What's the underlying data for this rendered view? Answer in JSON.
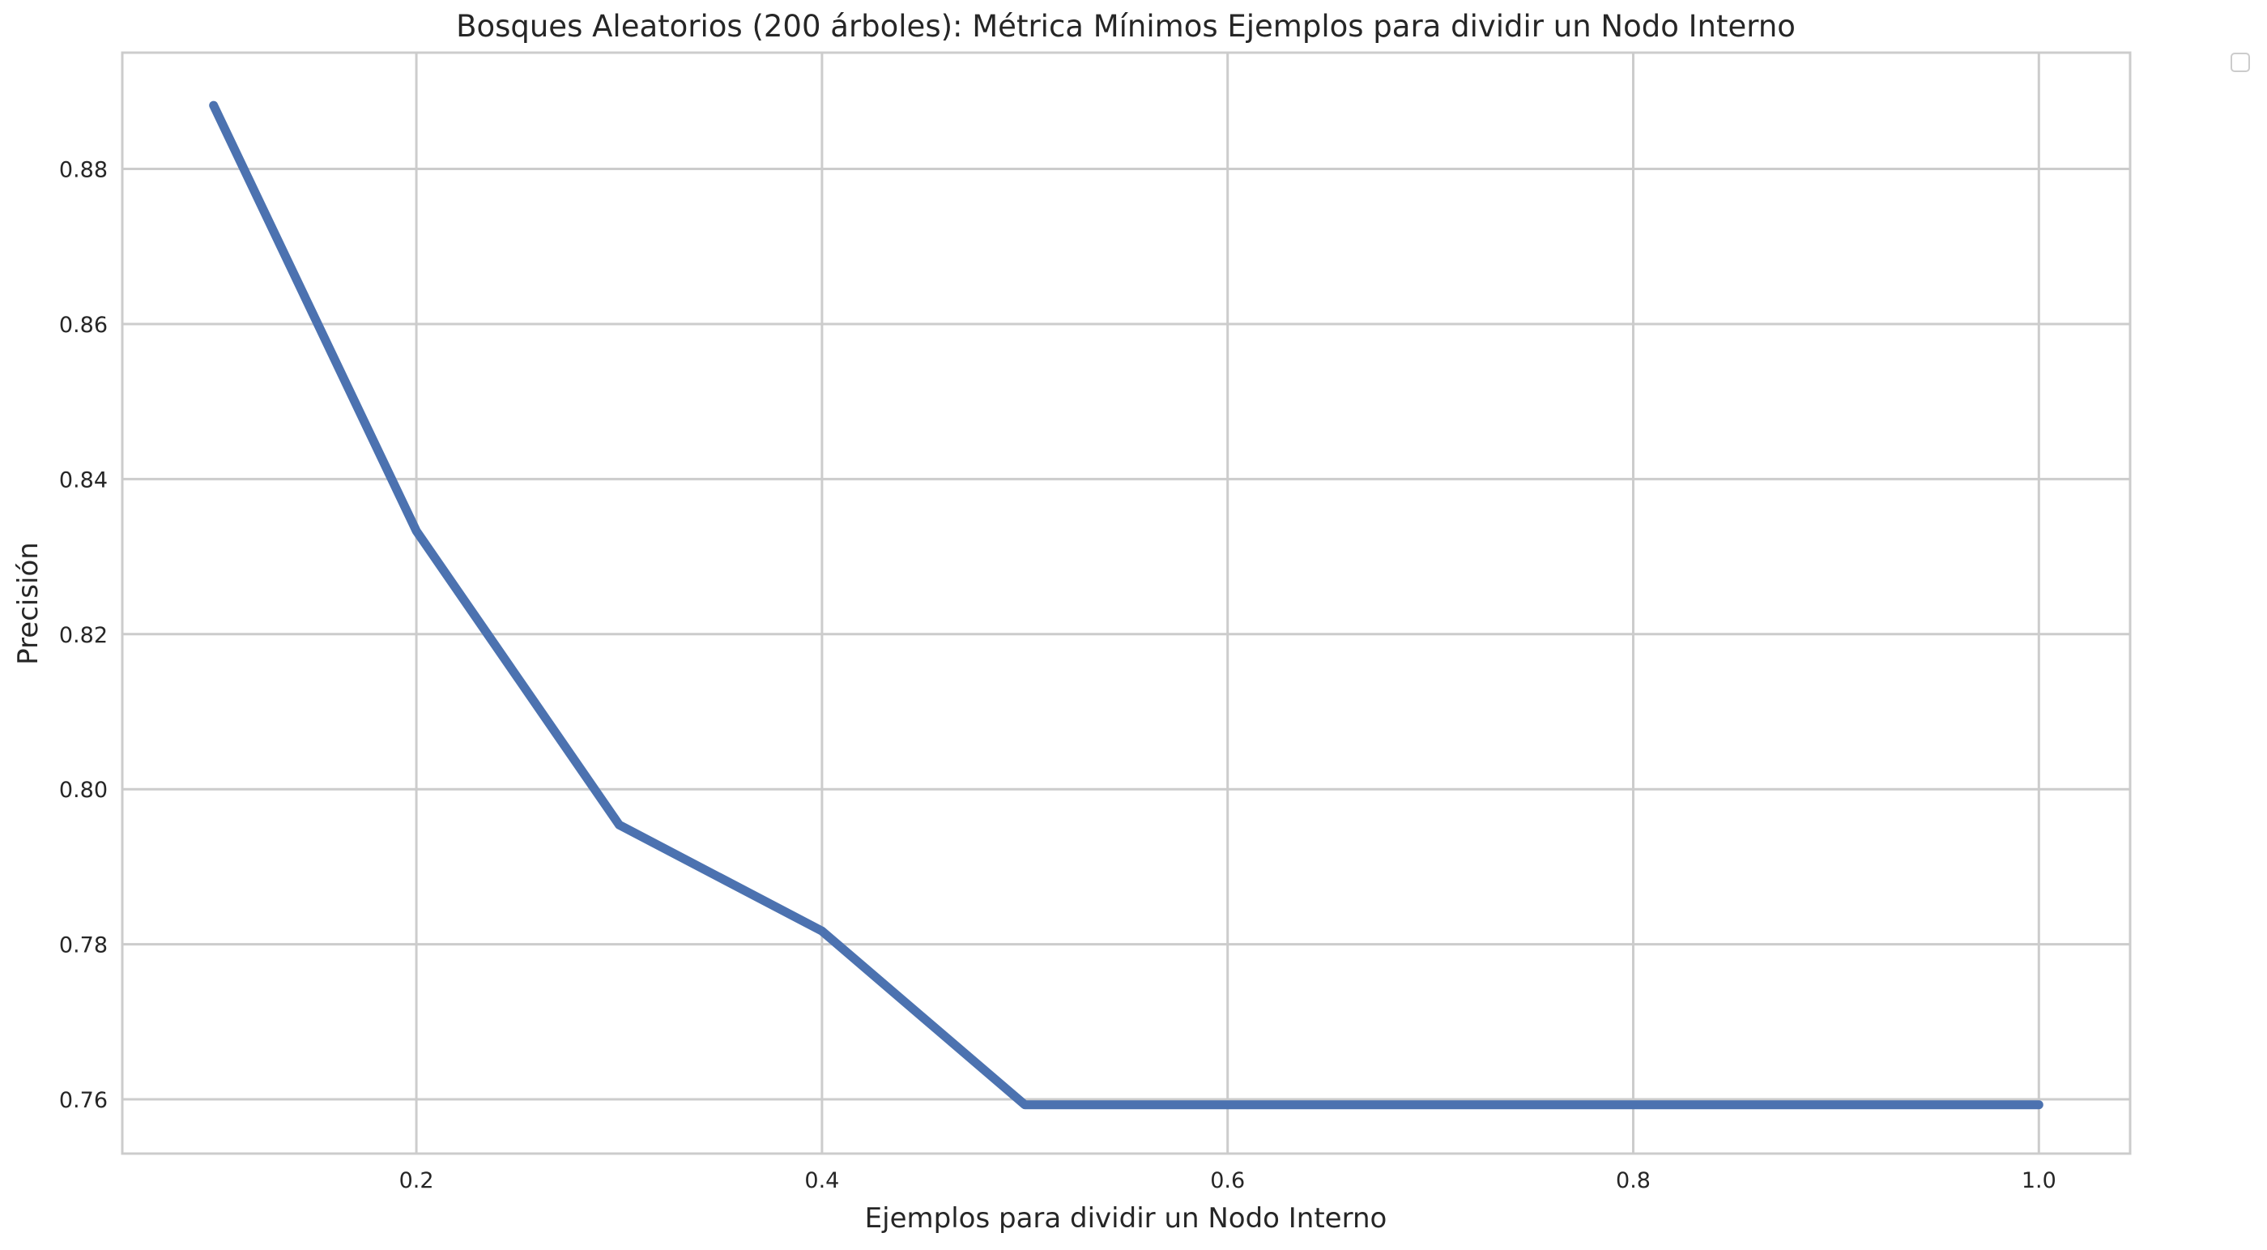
{
  "chart_data": {
    "type": "line",
    "title": "Bosques Aleatorios (200 árboles): Métrica Mínimos Ejemplos para dividir un Nodo Interno",
    "xlabel": "Ejemplos para dividir un Nodo Interno",
    "ylabel": "Precisión",
    "xlim": [
      0.055,
      1.045
    ],
    "ylim": [
      0.753,
      0.895
    ],
    "xticks": [
      0.2,
      0.4,
      0.6,
      0.8,
      1.0
    ],
    "xtick_labels": [
      "0.2",
      "0.4",
      "0.6",
      "0.8",
      "1.0"
    ],
    "yticks": [
      0.76,
      0.78,
      0.8,
      0.82,
      0.84,
      0.86,
      0.88
    ],
    "ytick_labels": [
      "0.76",
      "0.78",
      "0.80",
      "0.82",
      "0.84",
      "0.86",
      "0.88"
    ],
    "grid": true,
    "legend": "top-right, empty",
    "series": [
      {
        "x": [
          0.1,
          0.2,
          0.3,
          0.4,
          0.5,
          0.6,
          0.7,
          0.8,
          0.9,
          1.0
        ],
        "y": [
          0.8882,
          0.8333,
          0.7954,
          0.7817,
          0.7593,
          0.7593,
          0.7593,
          0.7593,
          0.7593,
          0.7593
        ],
        "color": "#4C72B0"
      }
    ],
    "colors": {
      "line": "#4C72B0",
      "grid": "#cccccc",
      "spine": "#cccccc",
      "text": "#262626"
    }
  }
}
